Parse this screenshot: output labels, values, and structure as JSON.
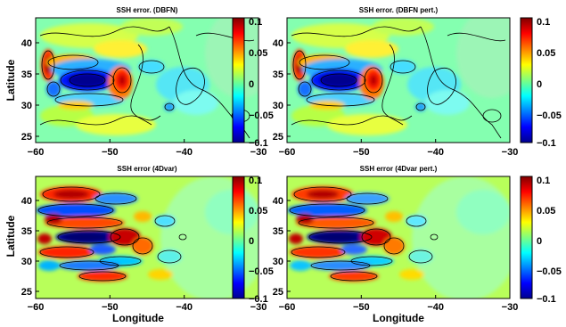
{
  "chart_data": [
    {
      "type": "heatmap",
      "title": "SSH error. (DBFN)",
      "xlabel": "",
      "ylabel": "Latitude",
      "xlim": [
        -60,
        -30
      ],
      "ylim": [
        24,
        44
      ],
      "xticks": [
        "−60",
        "−50",
        "−40",
        "−30"
      ],
      "yticks": [
        "25",
        "30",
        "35",
        "40"
      ],
      "colorbar": {
        "range": [
          -0.1,
          0.1
        ],
        "ticks": [
          "0.1",
          "0.05",
          "0",
          "−0.05",
          "−0.1"
        ]
      },
      "features": [
        {
          "kind": "eddy",
          "lon": -55.5,
          "lat": 34.2,
          "value": -0.1
        },
        {
          "kind": "eddy",
          "lon": -51.5,
          "lat": 33.8,
          "value": 0.09
        },
        {
          "kind": "eddy",
          "lon": -59.0,
          "lat": 37.0,
          "value": 0.08
        },
        {
          "kind": "eddy",
          "lon": -57.0,
          "lat": 36.5,
          "value": 0.06
        },
        {
          "kind": "eddy",
          "lon": -40.0,
          "lat": 35.0,
          "value": -0.03
        }
      ]
    },
    {
      "type": "heatmap",
      "title": "SSH error. (DBFN pert.)",
      "xlabel": "",
      "ylabel": "",
      "xlim": [
        -60,
        -30
      ],
      "ylim": [
        24,
        44
      ],
      "xticks": [
        "−60",
        "−50",
        "−40",
        "−30"
      ],
      "yticks": [
        "25",
        "30",
        "35",
        "40"
      ],
      "colorbar": {
        "range": [
          -0.1,
          0.1
        ],
        "ticks": [
          "0.1",
          "0.05",
          "0",
          "−0.05",
          "−0.1"
        ]
      },
      "features": [
        {
          "kind": "eddy",
          "lon": -55.5,
          "lat": 34.2,
          "value": -0.1
        },
        {
          "kind": "eddy",
          "lon": -51.5,
          "lat": 33.8,
          "value": 0.09
        },
        {
          "kind": "eddy",
          "lon": -59.0,
          "lat": 37.0,
          "value": 0.08
        },
        {
          "kind": "eddy",
          "lon": -57.0,
          "lat": 36.5,
          "value": 0.06
        },
        {
          "kind": "eddy",
          "lon": -40.0,
          "lat": 35.0,
          "value": -0.03
        }
      ]
    },
    {
      "type": "heatmap",
      "title": "SSH error (4Dvar)",
      "xlabel": "Longitude",
      "ylabel": "Latitude",
      "xlim": [
        -60,
        -30
      ],
      "ylim": [
        24,
        44
      ],
      "xticks": [
        "−60",
        "−50",
        "−40",
        "−30"
      ],
      "yticks": [
        "25",
        "30",
        "35",
        "40"
      ],
      "colorbar": {
        "range": [
          -0.1,
          0.1
        ],
        "ticks": [
          "0.1",
          "0.05",
          "0",
          "−0.05",
          "−0.1"
        ]
      },
      "features": [
        {
          "kind": "eddy",
          "lon": -55.5,
          "lat": 34.5,
          "value": -0.1
        },
        {
          "kind": "eddy",
          "lon": -51.0,
          "lat": 34.0,
          "value": 0.08
        },
        {
          "kind": "eddy",
          "lon": -56.5,
          "lat": 38.5,
          "value": 0.08
        },
        {
          "kind": "eddy",
          "lon": -57.5,
          "lat": 31.0,
          "value": 0.07
        },
        {
          "kind": "eddy",
          "lon": -52.5,
          "lat": 28.5,
          "value": 0.06
        }
      ]
    },
    {
      "type": "heatmap",
      "title": "SSH error (4Dvar pert.)",
      "xlabel": "Longitude",
      "ylabel": "",
      "xlim": [
        -60,
        -30
      ],
      "ylim": [
        24,
        44
      ],
      "xticks": [
        "−60",
        "−50",
        "−40",
        "−30"
      ],
      "yticks": [
        "25",
        "30",
        "35",
        "40"
      ],
      "colorbar": {
        "range": [
          -0.1,
          0.1
        ],
        "ticks": [
          "0.1",
          "0.05",
          "0",
          "−0.05",
          "−0.1"
        ]
      },
      "features": [
        {
          "kind": "eddy",
          "lon": -55.5,
          "lat": 34.5,
          "value": -0.1
        },
        {
          "kind": "eddy",
          "lon": -51.0,
          "lat": 34.0,
          "value": 0.08
        },
        {
          "kind": "eddy",
          "lon": -56.5,
          "lat": 38.5,
          "value": 0.07
        },
        {
          "kind": "eddy",
          "lon": -57.5,
          "lat": 31.0,
          "value": 0.06
        },
        {
          "kind": "eddy",
          "lon": -52.5,
          "lat": 28.5,
          "value": 0.05
        }
      ]
    }
  ]
}
